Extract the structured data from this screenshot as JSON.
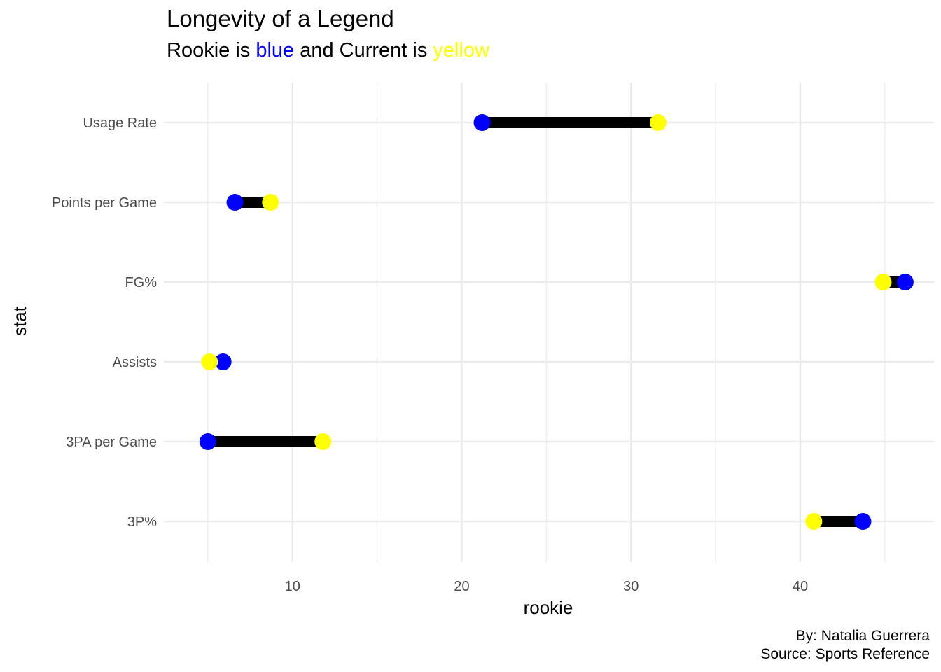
{
  "chart_data": {
    "type": "dumbbell",
    "title": "Longevity of a Legend",
    "subtitle": {
      "part1": "Rookie is ",
      "blue_word": "blue",
      "part2": " and Current is ",
      "yellow_word": "yellow"
    },
    "xlabel": "rookie",
    "ylabel": "stat",
    "caption": [
      "By: Natalia Guerrera",
      "Source: Sports Reference"
    ],
    "xlim": [
      2.4,
      47.9
    ],
    "x_ticks": [
      10,
      20,
      30,
      40
    ],
    "x_tick_labels": [
      "10",
      "20",
      "30",
      "40"
    ],
    "categories": [
      "3P%",
      "3PA per Game",
      "Assists",
      "FG%",
      "Points per Game",
      "Usage Rate"
    ],
    "series": [
      {
        "color": "#0000ff",
        "values": [
          43.7,
          5.0,
          5.9,
          46.2,
          6.6,
          21.2
        ]
      },
      {
        "color": "#ffff00",
        "values": [
          40.8,
          11.8,
          5.1,
          44.9,
          8.7,
          31.6
        ]
      }
    ],
    "segment_color": "#000000",
    "grid": true
  }
}
